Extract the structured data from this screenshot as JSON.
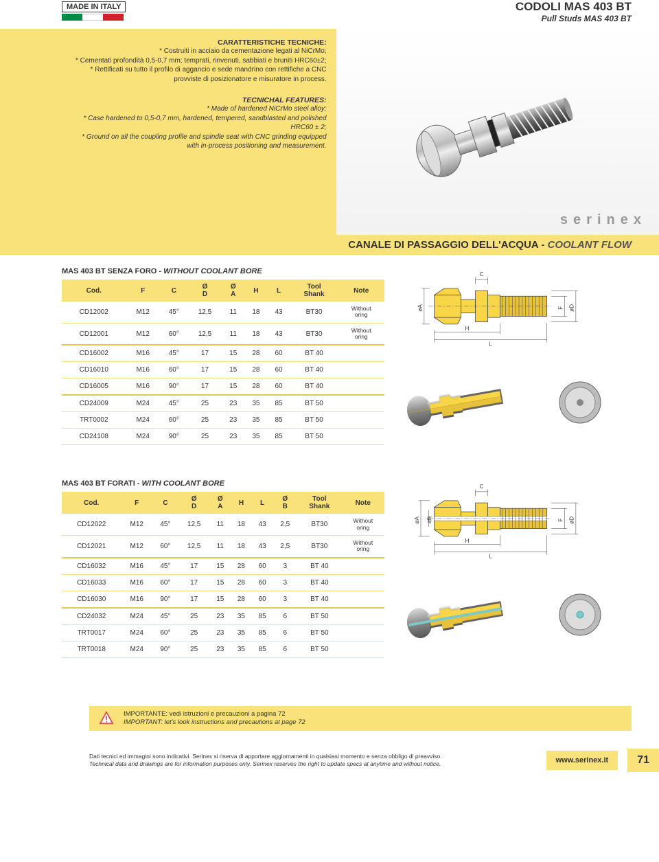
{
  "header": {
    "made_in": "MADE IN ITALY",
    "title": "CODOLI  MAS 403 BT",
    "subtitle": "Pull Studs MAS 403 BT"
  },
  "hero": {
    "it_title": "CARATTERISTICHE TECNICHE:",
    "it_l1": "* Costruiti in acciaio da cementazione legati al NiCrMo;",
    "it_l2": "* Cementati profondità 0,5-0,7 mm; temprati, rinvenuti, sabbiati e bruniti HRC60±2;",
    "it_l3": "* Rettificati su tutto il profilo di aggancio e sede mandrino con rettifiche a CNC",
    "it_l4": "provviste di posizionatore e misuratore in process.",
    "en_title": "TECNICHAL FEATURES:",
    "en_l1": "* Made of hardened NiCrMo steel alloy;",
    "en_l2": "* Case hardened  to 0,5-0,7 mm, hardened, tempered, sandblasted and polished",
    "en_l3": "HRC60 ± 2;",
    "en_l4": "* Ground on all the coupling profile and spindle seat with CNC grinding equipped",
    "en_l5": "with in-process positioning and measurement.",
    "brand": "serinex"
  },
  "banner": {
    "it": "CANALE DI PASSAGGIO DELL'ACQUA - ",
    "en": "COOLANT FLOW"
  },
  "table1": {
    "title_it": "MAS 403 BT SENZA FORO - ",
    "title_en": "WITHOUT COOLANT BORE",
    "headers": [
      "Cod.",
      "F",
      "C",
      "Ø D",
      "Ø A",
      "H",
      "L",
      "Tool Shank",
      "Note"
    ],
    "rows": [
      [
        "CD12002",
        "M12",
        "45°",
        "12,5",
        "11",
        "18",
        "43",
        "BT30",
        "Without oring"
      ],
      [
        "CD12001",
        "M12",
        "60°",
        "12,5",
        "11",
        "18",
        "43",
        "BT30",
        "Without oring"
      ],
      [
        "CD16002",
        "M16",
        "45°",
        "17",
        "15",
        "28",
        "60",
        "BT 40",
        ""
      ],
      [
        "CD16010",
        "M16",
        "60°",
        "17",
        "15",
        "28",
        "60",
        "BT 40",
        ""
      ],
      [
        "CD16005",
        "M16",
        "90°",
        "17",
        "15",
        "28",
        "60",
        "BT 40",
        ""
      ],
      [
        "CD24009",
        "M24",
        "45°",
        "25",
        "23",
        "35",
        "85",
        "BT 50",
        ""
      ],
      [
        "TRT0002",
        "M24",
        "60°",
        "25",
        "23",
        "35",
        "85",
        "BT 50",
        ""
      ],
      [
        "CD24108",
        "M24",
        "90°",
        "25",
        "23",
        "35",
        "85",
        "BT 50",
        ""
      ]
    ],
    "group_breaks": [
      2,
      5
    ]
  },
  "table2": {
    "title_it": "MAS 403 BT FORATI - ",
    "title_en": "WITH COOLANT BORE",
    "headers": [
      "Cod.",
      "F",
      "C",
      "Ø D",
      "Ø A",
      "H",
      "L",
      "Ø B",
      "Tool Shank",
      "Note"
    ],
    "rows": [
      [
        "CD12022",
        "M12",
        "45°",
        "12,5",
        "11",
        "18",
        "43",
        "2,5",
        "BT30",
        "Without oring"
      ],
      [
        "CD12021",
        "M12",
        "60°",
        "12,5",
        "11",
        "18",
        "43",
        "2,5",
        "BT30",
        "Without oring"
      ],
      [
        "CD16032",
        "M16",
        "45°",
        "17",
        "15",
        "28",
        "60",
        "3",
        "BT 40",
        ""
      ],
      [
        "CD16033",
        "M16",
        "60°",
        "17",
        "15",
        "28",
        "60",
        "3",
        "BT 40",
        ""
      ],
      [
        "CD16030",
        "M16",
        "90°",
        "17",
        "15",
        "28",
        "60",
        "3",
        "BT 40",
        ""
      ],
      [
        "CD24032",
        "M24",
        "45°",
        "25",
        "23",
        "35",
        "85",
        "6",
        "BT 50",
        ""
      ],
      [
        "TRT0017",
        "M24",
        "60°",
        "25",
        "23",
        "35",
        "85",
        "6",
        "BT 50",
        ""
      ],
      [
        "TRT0018",
        "M24",
        "90°",
        "25",
        "23",
        "35",
        "85",
        "6",
        "BT 50",
        ""
      ]
    ],
    "group_breaks": [
      2,
      5
    ]
  },
  "diagram": {
    "labels": {
      "c": "C",
      "h": "H",
      "l": "L",
      "f": "F",
      "oa": "øA",
      "ob": "øB",
      "od": "øD"
    },
    "colors": {
      "fill": "#f9d648",
      "section": "#e8c23a",
      "outline": "#4a4a4a",
      "dim": "#333333",
      "thread": "#888888"
    }
  },
  "important": {
    "it": "IMPORTANTE: vedi istruzioni e precauzioni a pagina 72",
    "en": "IMPORTANT: let's look instructions and precautions at page 72"
  },
  "footer": {
    "it": "Dati tecnici ed immagini sono indicativi. Serinex si riserva di apportare aggiornamenti in qualsiasi momento e senza obbligo di preavviso.",
    "en": "Technical data and drawings are for information purposes only. Serinex reserves the right to update specs at anytime and  without notice.",
    "link": "www.serinex.it",
    "page": "71"
  },
  "colors": {
    "yellow": "#f9e27a",
    "text": "#333333"
  }
}
